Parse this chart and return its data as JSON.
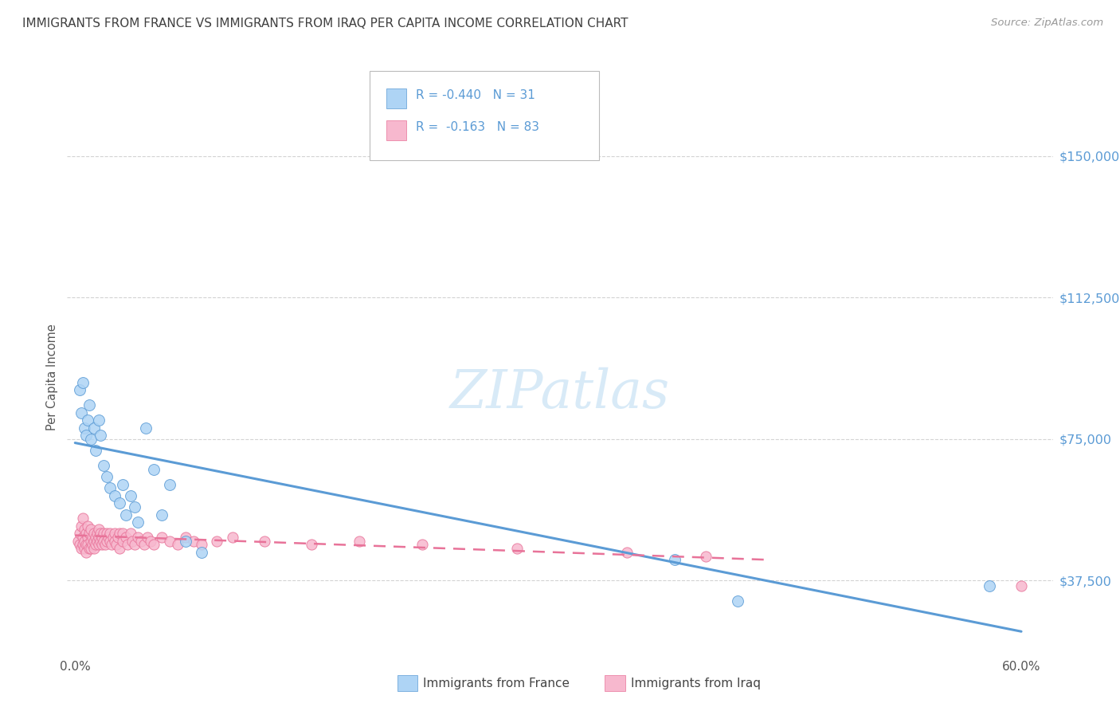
{
  "title": "IMMIGRANTS FROM FRANCE VS IMMIGRANTS FROM IRAQ PER CAPITA INCOME CORRELATION CHART",
  "source": "Source: ZipAtlas.com",
  "ylabel": "Per Capita Income",
  "ytick_labels": [
    "$37,500",
    "$75,000",
    "$112,500",
    "$150,000"
  ],
  "ytick_values": [
    37500,
    75000,
    112500,
    150000
  ],
  "ylim": [
    18000,
    165000
  ],
  "xlim": [
    -0.005,
    0.62
  ],
  "france_color": "#aed4f5",
  "iraq_color": "#f7b8ce",
  "france_line_color": "#5b9bd5",
  "iraq_line_color": "#e87399",
  "watermark": "ZIPatlas",
  "background_color": "#ffffff",
  "grid_color": "#c8c8c8",
  "title_color": "#404040",
  "axis_label_color": "#5b9bd5",
  "france_scatter_x": [
    0.003,
    0.004,
    0.005,
    0.006,
    0.007,
    0.008,
    0.009,
    0.01,
    0.012,
    0.013,
    0.015,
    0.016,
    0.018,
    0.02,
    0.022,
    0.025,
    0.028,
    0.03,
    0.032,
    0.035,
    0.038,
    0.04,
    0.045,
    0.05,
    0.055,
    0.06,
    0.07,
    0.08,
    0.38,
    0.42,
    0.58
  ],
  "france_scatter_y": [
    88000,
    82000,
    90000,
    78000,
    76000,
    80000,
    84000,
    75000,
    78000,
    72000,
    80000,
    76000,
    68000,
    65000,
    62000,
    60000,
    58000,
    63000,
    55000,
    60000,
    57000,
    53000,
    78000,
    67000,
    55000,
    63000,
    48000,
    45000,
    43000,
    32000,
    36000
  ],
  "iraq_scatter_x": [
    0.002,
    0.003,
    0.003,
    0.004,
    0.004,
    0.005,
    0.005,
    0.005,
    0.006,
    0.006,
    0.006,
    0.007,
    0.007,
    0.007,
    0.008,
    0.008,
    0.008,
    0.009,
    0.009,
    0.01,
    0.01,
    0.01,
    0.011,
    0.011,
    0.012,
    0.012,
    0.012,
    0.013,
    0.013,
    0.014,
    0.014,
    0.015,
    0.015,
    0.015,
    0.016,
    0.016,
    0.017,
    0.017,
    0.018,
    0.018,
    0.019,
    0.02,
    0.02,
    0.021,
    0.022,
    0.022,
    0.023,
    0.024,
    0.025,
    0.025,
    0.026,
    0.027,
    0.028,
    0.028,
    0.03,
    0.03,
    0.032,
    0.033,
    0.035,
    0.036,
    0.038,
    0.04,
    0.042,
    0.044,
    0.046,
    0.048,
    0.05,
    0.055,
    0.06,
    0.065,
    0.07,
    0.075,
    0.08,
    0.09,
    0.1,
    0.12,
    0.15,
    0.18,
    0.22,
    0.28,
    0.35,
    0.4,
    0.6
  ],
  "iraq_scatter_y": [
    48000,
    50000,
    47000,
    52000,
    46000,
    54000,
    49000,
    47000,
    51000,
    48000,
    46000,
    50000,
    47000,
    45000,
    52000,
    49000,
    47000,
    50000,
    46000,
    51000,
    48000,
    46000,
    49000,
    47000,
    50000,
    48000,
    46000,
    49000,
    47000,
    50000,
    48000,
    51000,
    49000,
    47000,
    50000,
    48000,
    49000,
    47000,
    50000,
    48000,
    47000,
    50000,
    48000,
    49000,
    50000,
    48000,
    47000,
    49000,
    50000,
    48000,
    47000,
    49000,
    50000,
    46000,
    50000,
    48000,
    49000,
    47000,
    50000,
    48000,
    47000,
    49000,
    48000,
    47000,
    49000,
    48000,
    47000,
    49000,
    48000,
    47000,
    49000,
    48000,
    47000,
    48000,
    49000,
    48000,
    47000,
    48000,
    47000,
    46000,
    45000,
    44000,
    36000
  ],
  "france_line_x": [
    0.0,
    0.6
  ],
  "france_line_y": [
    74000,
    24000
  ],
  "iraq_line_x": [
    0.0,
    0.44
  ],
  "iraq_line_y": [
    49500,
    43000
  ]
}
